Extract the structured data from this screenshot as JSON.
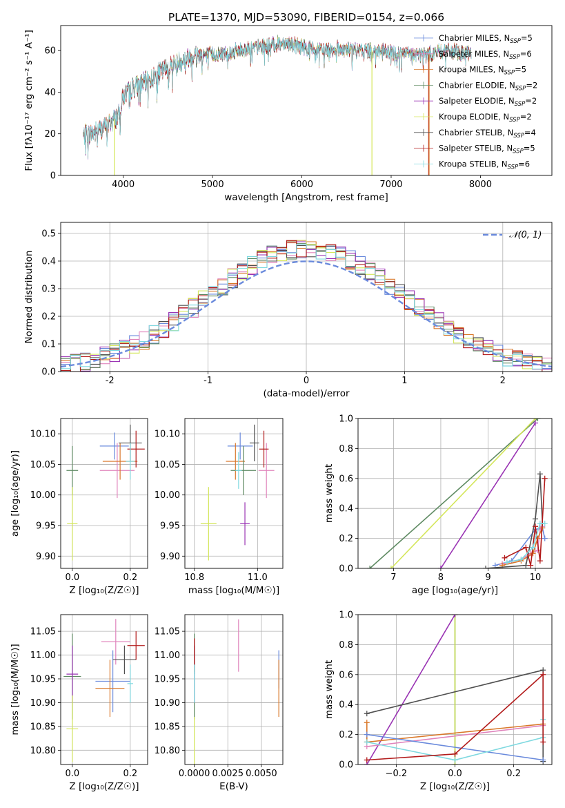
{
  "figure_title": "PLATE=1370, MJD=53090, FIBERID=0154, z=0.066",
  "colors": {
    "Chabrier MILES": "#6a8adc",
    "Salpeter MILES": "#e084bc",
    "Kroupa MILES": "#d9782a",
    "Chabrier ELODIE": "#5e8a62",
    "Salpeter ELODIE": "#9a34b4",
    "Kroupa ELODIE": "#d4e65a",
    "Chabrier STELIB": "#505050",
    "Salpeter STELIB": "#b21a1a",
    "Kroupa STELIB": "#7fd9e0",
    "normal": "#6a8adc"
  },
  "chart_data": [
    {
      "id": "spectrum",
      "type": "line",
      "xlabel": "wavelength [Angstrom, rest frame]",
      "ylabel": "Flux [fλ10⁻¹⁷ erg cm⁻² s⁻¹ A⁻¹]",
      "xlim": [
        3300,
        8800
      ],
      "ylim": [
        0,
        72
      ],
      "xticks": [
        4000,
        5000,
        6000,
        7000,
        8000
      ],
      "yticks": [
        0,
        20,
        40,
        60
      ],
      "grid": false,
      "legend_position": "top-right",
      "legend": [
        {
          "main": "Chabrier MILES, N",
          "sub": "SSP",
          "tail": "=5"
        },
        {
          "main": "Salpeter MILES, N",
          "sub": "SSP",
          "tail": "=6"
        },
        {
          "main": "Kroupa MILES, N",
          "sub": "SSP",
          "tail": "=5"
        },
        {
          "main": "Chabrier ELODIE, N",
          "sub": "SSP",
          "tail": "=2"
        },
        {
          "main": "Salpeter ELODIE, N",
          "sub": "SSP",
          "tail": "=2"
        },
        {
          "main": "Kroupa ELODIE, N",
          "sub": "SSP",
          "tail": "=2"
        },
        {
          "main": "Chabrier STELIB, N",
          "sub": "SSP",
          "tail": "=4"
        },
        {
          "main": "Salpeter STELIB, N",
          "sub": "SSP",
          "tail": "=5"
        },
        {
          "main": "Kroupa STELIB, N",
          "sub": "SSP",
          "tail": "=6"
        }
      ],
      "continuum_x": [
        3550,
        3700,
        3850,
        3950,
        4000,
        4100,
        4300,
        4500,
        4800,
        5000,
        5200,
        5400,
        5600,
        5800,
        6000,
        6200,
        6400,
        6600,
        6800,
        7000,
        7200,
        7400,
        7600,
        7800,
        7900
      ],
      "continuum_y": [
        19,
        21,
        25,
        29,
        38,
        42,
        46,
        52,
        58,
        58,
        59,
        61,
        62,
        64,
        62,
        60,
        61,
        60,
        60,
        59,
        58,
        58,
        60,
        59,
        58
      ],
      "drops": [
        {
          "x": 3900,
          "model": "Kroupa ELODIE"
        },
        {
          "x": 6785,
          "model": "Kroupa ELODIE"
        },
        {
          "x": 7420,
          "model": "Salpeter STELIB"
        },
        {
          "x": 7425,
          "model": "Kroupa MILES"
        }
      ]
    },
    {
      "id": "residuals",
      "type": "step",
      "xlabel": "(data-model)/error",
      "ylabel": "Normed distribution",
      "xlim": [
        -2.5,
        2.5
      ],
      "ylim": [
        0,
        0.54
      ],
      "xticks": [
        -2,
        -1,
        0,
        1,
        2
      ],
      "yticks": [
        0.0,
        0.1,
        0.2,
        0.3,
        0.4,
        0.5
      ],
      "grid": true,
      "legend_position": "top-right",
      "normal_label": "𝒩(0, 1)",
      "bin_width": 0.1
    },
    {
      "id": "age-vs-Z",
      "type": "scatter",
      "xlabel": "Z [log₁₀(Z/Z☉)]",
      "ylabel": "age  [log₁₀(age/yr)]",
      "xlim": [
        -0.04,
        0.26
      ],
      "ylim": [
        9.88,
        10.125
      ],
      "xticks": [
        0.0,
        0.2
      ],
      "xtick_labels": [
        "0.0",
        "0.2"
      ],
      "yticks": [
        9.9,
        9.95,
        10.0,
        10.05,
        10.1
      ],
      "ytick_labels": [
        "9.90",
        "9.95",
        "10.00",
        "10.05",
        "10.10"
      ],
      "grid": true,
      "points": [
        {
          "model": "Chabrier MILES",
          "x": 0.145,
          "y": 10.08,
          "xerr": 0.05,
          "yerr": 0.022
        },
        {
          "model": "Salpeter MILES",
          "x": 0.155,
          "y": 10.04,
          "xerr": 0.06,
          "yerr": 0.045
        },
        {
          "model": "Kroupa MILES",
          "x": 0.165,
          "y": 10.055,
          "xerr": 0.06,
          "yerr": 0.03
        },
        {
          "model": "Chabrier ELODIE",
          "x": 0.0,
          "y": 10.04,
          "xerr": 0.02,
          "yerr": 0.04
        },
        {
          "model": "Salpeter ELODIE",
          "x": 0.0,
          "y": 10.04,
          "xerr": 0.0,
          "yerr": 0.0
        },
        {
          "model": "Kroupa ELODIE",
          "x": 0.0,
          "y": 9.953,
          "xerr": 0.018,
          "yerr": 0.06
        },
        {
          "model": "Chabrier STELIB",
          "x": 0.2,
          "y": 10.085,
          "xerr": 0.04,
          "yerr": 0.03
        },
        {
          "model": "Salpeter STELIB",
          "x": 0.22,
          "y": 10.075,
          "xerr": 0.03,
          "yerr": 0.03
        },
        {
          "model": "Kroupa STELIB",
          "x": 0.2,
          "y": 10.055,
          "xerr": 0.015,
          "yerr": 0.03
        }
      ]
    },
    {
      "id": "age-vs-mass",
      "type": "scatter",
      "xlabel": "mass [log₁₀(M/M☉)]",
      "ylabel": "",
      "xlim": [
        10.77,
        11.08
      ],
      "ylim": [
        9.88,
        10.125
      ],
      "xticks": [
        10.8,
        11.0
      ],
      "xtick_labels": [
        "10.8",
        "11.0"
      ],
      "yticks": [
        9.9,
        9.95,
        10.0,
        10.05,
        10.1
      ],
      "ytick_labels": [
        "9.90",
        "9.95",
        "10.00",
        "10.05",
        "10.10"
      ],
      "grid": true,
      "points": [
        {
          "model": "Chabrier MILES",
          "x": 10.945,
          "y": 10.08,
          "xerr": 0.04,
          "yerr": 0.022
        },
        {
          "model": "Salpeter MILES",
          "x": 11.028,
          "y": 10.04,
          "xerr": 0.025,
          "yerr": 0.045
        },
        {
          "model": "Kroupa MILES",
          "x": 10.93,
          "y": 10.055,
          "xerr": 0.03,
          "yerr": 0.03
        },
        {
          "model": "Chabrier ELODIE",
          "x": 10.955,
          "y": 10.04,
          "xerr": 0.04,
          "yerr": 0.04
        },
        {
          "model": "Salpeter ELODIE",
          "x": 10.96,
          "y": 9.953,
          "xerr": 0.015,
          "yerr": 0.035
        },
        {
          "model": "Kroupa ELODIE",
          "x": 10.845,
          "y": 9.953,
          "xerr": 0.025,
          "yerr": 0.06
        },
        {
          "model": "Chabrier STELIB",
          "x": 10.99,
          "y": 10.085,
          "xerr": 0.015,
          "yerr": 0.03
        },
        {
          "model": "Salpeter STELIB",
          "x": 11.02,
          "y": 10.075,
          "xerr": 0.015,
          "yerr": 0.03
        },
        {
          "model": "Kroupa STELIB",
          "x": 10.94,
          "y": 10.04,
          "xerr": 0.01,
          "yerr": 0.03
        }
      ]
    },
    {
      "id": "weight-vs-age",
      "type": "line",
      "xlabel": "age  [log₁₀(age/yr)]",
      "ylabel": "mass weight",
      "xlim": [
        6.25,
        10.35
      ],
      "ylim": [
        0,
        1.0
      ],
      "xticks": [
        7,
        8,
        9,
        10
      ],
      "yticks": [
        0.0,
        0.2,
        0.4,
        0.6,
        0.8,
        1.0
      ],
      "ytick_labels": [
        "0.0",
        "0.2",
        "0.4",
        "0.6",
        "0.8",
        "1.0"
      ],
      "grid": true,
      "series": [
        {
          "model": "Chabrier ELODIE",
          "x": [
            6.5,
            10.05
          ],
          "y": [
            0.0,
            1.0
          ]
        },
        {
          "model": "Kroupa ELODIE",
          "x": [
            6.95,
            10.0
          ],
          "y": [
            0.0,
            1.0
          ]
        },
        {
          "model": "Salpeter ELODIE",
          "x": [
            8.0,
            10.0
          ],
          "y": [
            0.0,
            0.97
          ]
        },
        {
          "model": "Chabrier MILES",
          "x": [
            9.15,
            9.5,
            10.0,
            10.15,
            10.2
          ],
          "y": [
            0.02,
            0.05,
            0.26,
            0.27,
            0.2
          ]
        },
        {
          "model": "Salpeter MILES",
          "x": [
            9.3,
            9.7,
            9.9,
            10.05,
            10.1,
            10.15
          ],
          "y": [
            0.03,
            0.06,
            0.1,
            0.12,
            0.26,
            0.28
          ]
        },
        {
          "model": "Kroupa MILES",
          "x": [
            9.3,
            9.7,
            9.95,
            10.05,
            10.15
          ],
          "y": [
            0.02,
            0.05,
            0.1,
            0.2,
            0.27
          ]
        },
        {
          "model": "Chabrier STELIB",
          "x": [
            8.95,
            9.8,
            10.0,
            10.1,
            10.15
          ],
          "y": [
            0.0,
            0.02,
            0.33,
            0.63,
            0.3
          ]
        },
        {
          "model": "Salpeter STELIB",
          "x": [
            9.35,
            9.8,
            9.9,
            10.0,
            10.1,
            10.2
          ],
          "y": [
            0.07,
            0.14,
            0.02,
            0.28,
            0.05,
            0.6
          ]
        },
        {
          "model": "Kroupa STELIB",
          "x": [
            9.4,
            9.7,
            9.95,
            10.1,
            10.2
          ],
          "y": [
            0.04,
            0.06,
            0.14,
            0.3,
            0.3
          ]
        }
      ]
    },
    {
      "id": "mass-vs-Z",
      "type": "scatter",
      "xlabel": "Z [log₁₀(Z/Z☉)]",
      "ylabel": "mass [log₁₀(M/M☉)]",
      "xlim": [
        -0.04,
        0.26
      ],
      "ylim": [
        10.77,
        11.085
      ],
      "xticks": [
        0.0,
        0.2
      ],
      "xtick_labels": [
        "0.0",
        "0.2"
      ],
      "yticks": [
        10.8,
        10.85,
        10.9,
        10.95,
        11.0,
        11.05
      ],
      "ytick_labels": [
        "10.80",
        "10.85",
        "10.90",
        "10.95",
        "11.00",
        "11.05"
      ],
      "grid": true,
      "points": [
        {
          "model": "Chabrier MILES",
          "x": 0.14,
          "y": 10.945,
          "xerr": 0.06,
          "yerr": 0.065
        },
        {
          "model": "Salpeter MILES",
          "x": 0.15,
          "y": 11.028,
          "xerr": 0.05,
          "yerr": 0.048
        },
        {
          "model": "Kroupa MILES",
          "x": 0.13,
          "y": 10.93,
          "xerr": 0.05,
          "yerr": 0.06
        },
        {
          "model": "Chabrier ELODIE",
          "x": 0.0,
          "y": 10.955,
          "xerr": 0.03,
          "yerr": 0.09
        },
        {
          "model": "Salpeter ELODIE",
          "x": 0.0,
          "y": 10.96,
          "xerr": 0.02,
          "yerr": 0.06
        },
        {
          "model": "Kroupa ELODIE",
          "x": 0.0,
          "y": 10.845,
          "xerr": 0.02,
          "yerr": 0.07
        },
        {
          "model": "Chabrier STELIB",
          "x": 0.18,
          "y": 10.99,
          "xerr": 0.04,
          "yerr": 0.03
        },
        {
          "model": "Salpeter STELIB",
          "x": 0.22,
          "y": 11.02,
          "xerr": 0.03,
          "yerr": 0.03
        },
        {
          "model": "Kroupa STELIB",
          "x": 0.2,
          "y": 10.94,
          "xerr": 0.01,
          "yerr": 0.04
        }
      ]
    },
    {
      "id": "mass-vs-ebv",
      "type": "scatter",
      "xlabel": "E(B-V)",
      "ylabel": "",
      "xlim": [
        -0.0007,
        0.0066
      ],
      "ylim": [
        10.77,
        11.085
      ],
      "xticks": [
        0.0,
        0.0025,
        0.005
      ],
      "xtick_labels": [
        "0.0000",
        "0.0025",
        "0.0050"
      ],
      "yticks": [
        10.8,
        10.85,
        10.9,
        10.95,
        11.0,
        11.05
      ],
      "ytick_labels": [
        "10.80",
        "10.85",
        "10.90",
        "10.95",
        "11.00",
        "11.05"
      ],
      "grid": true,
      "points": [
        {
          "model": "Chabrier MILES",
          "x": 0.0063,
          "y": 10.97,
          "xerr": 0.0,
          "yerr": 0.04
        },
        {
          "model": "Salpeter MILES",
          "x": 0.0033,
          "y": 11.02,
          "xerr": 0.0,
          "yerr": 0.055
        },
        {
          "model": "Kroupa MILES",
          "x": 0.0063,
          "y": 10.93,
          "xerr": 0.0,
          "yerr": 0.06
        },
        {
          "model": "Chabrier ELODIE",
          "x": 0.0,
          "y": 10.955,
          "xerr": 0.0,
          "yerr": 0.09
        },
        {
          "model": "Salpeter ELODIE",
          "x": 0.0,
          "y": 10.96,
          "xerr": 0.0,
          "yerr": 0.06
        },
        {
          "model": "Kroupa ELODIE",
          "x": 0.0,
          "y": 10.82,
          "xerr": 0.0,
          "yerr": 0.05
        },
        {
          "model": "Chabrier STELIB",
          "x": 0.0,
          "y": 10.99,
          "xerr": 0.0,
          "yerr": 0.03
        },
        {
          "model": "Salpeter STELIB",
          "x": 0.0,
          "y": 11.0,
          "xerr": 0.0,
          "yerr": 0.035
        },
        {
          "model": "Kroupa STELIB",
          "x": 0.0,
          "y": 10.94,
          "xerr": 0.0,
          "yerr": 0.04
        }
      ]
    },
    {
      "id": "weight-vs-Z",
      "type": "line",
      "xlabel": "Z [log₁₀(Z/Z☉)]",
      "ylabel": "mass weight",
      "xlim": [
        -0.33,
        0.33
      ],
      "ylim": [
        0,
        1.0
      ],
      "xticks": [
        -0.2,
        0.0,
        0.2
      ],
      "xtick_labels": [
        "−0.2",
        "0.0",
        "0.2"
      ],
      "yticks": [
        0.0,
        0.2,
        0.4,
        0.6,
        0.8,
        1.0
      ],
      "ytick_labels": [
        "0.0",
        "0.2",
        "0.4",
        "0.6",
        "0.8",
        "1.0"
      ],
      "grid": true,
      "series": [
        {
          "model": "Chabrier ELODIE",
          "x": [
            0.0,
            0.0
          ],
          "y": [
            0.0,
            1.0
          ]
        },
        {
          "model": "Kroupa ELODIE",
          "x": [
            0.0,
            0.0
          ],
          "y": [
            0.0,
            1.0
          ]
        },
        {
          "model": "Salpeter ELODIE",
          "x": [
            -0.3,
            0.0
          ],
          "y": [
            0.0,
            1.0
          ]
        },
        {
          "model": "Chabrier STELIB",
          "x": [
            -0.3,
            0.3,
            0.3
          ],
          "y": [
            0.34,
            0.63,
            0.02
          ]
        },
        {
          "model": "Kroupa MILES",
          "x": [
            -0.3,
            -0.3,
            0.3
          ],
          "y": [
            0.28,
            0.15,
            0.27
          ]
        },
        {
          "model": "Salpeter MILES",
          "x": [
            -0.3,
            0.3
          ],
          "y": [
            0.12,
            0.26
          ]
        },
        {
          "model": "Chabrier MILES",
          "x": [
            -0.3,
            0.3
          ],
          "y": [
            0.2,
            0.03
          ]
        },
        {
          "model": "Kroupa STELIB",
          "x": [
            -0.3,
            0.0,
            0.3,
            0.3
          ],
          "y": [
            0.15,
            0.03,
            0.18,
            0.3
          ]
        },
        {
          "model": "Salpeter STELIB",
          "x": [
            -0.3,
            0.0,
            0.3,
            0.3
          ],
          "y": [
            0.03,
            0.07,
            0.6,
            0.15
          ]
        }
      ]
    }
  ]
}
